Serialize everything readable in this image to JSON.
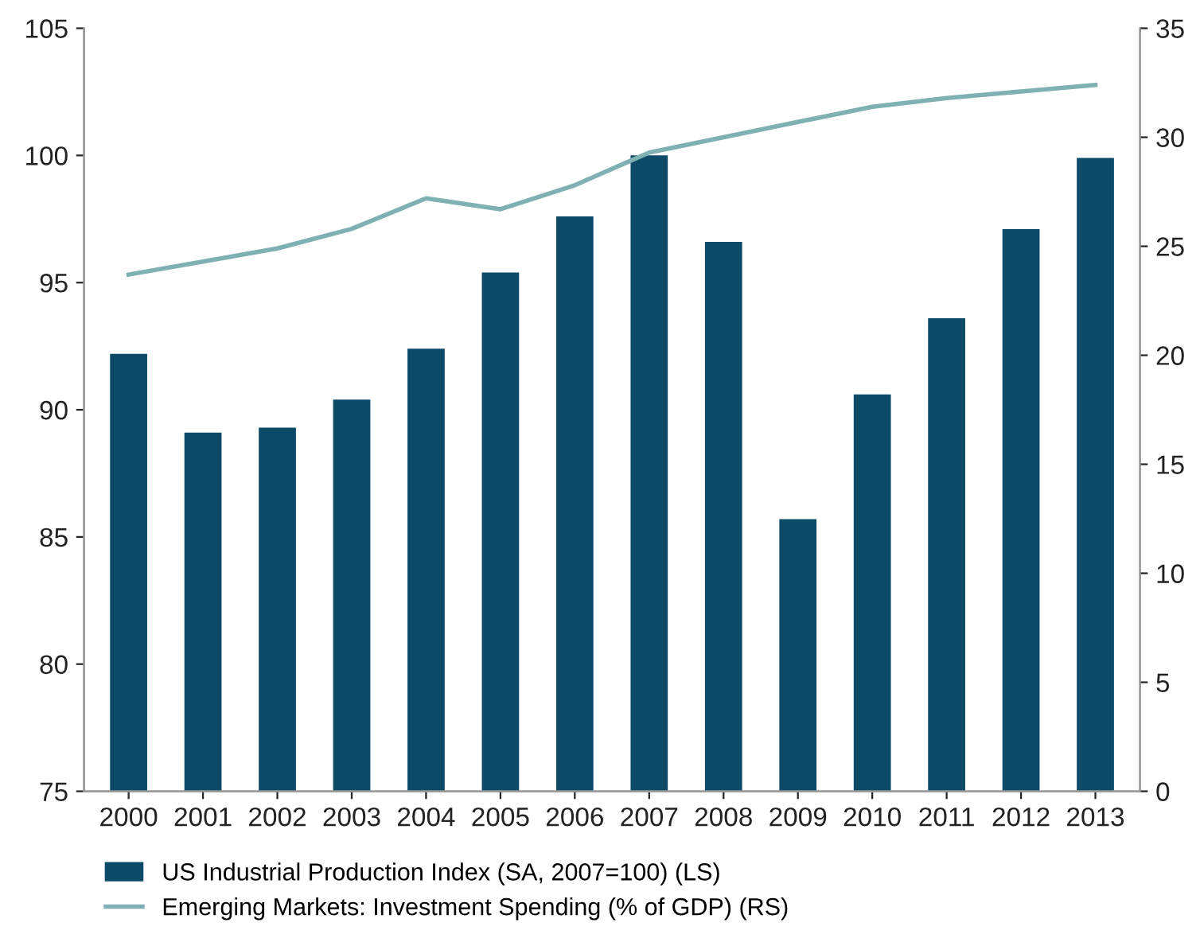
{
  "chart_data": {
    "type": "bar",
    "categories": [
      "2000",
      "2001",
      "2002",
      "2003",
      "2004",
      "2005",
      "2006",
      "2007",
      "2008",
      "2009",
      "2010",
      "2011",
      "2012",
      "2013"
    ],
    "series": [
      {
        "name": "US Industrial Production Index (SA, 2007=100) (LS)",
        "color": "#0d4a68",
        "values": [
          92.2,
          89.1,
          89.3,
          90.4,
          92.4,
          95.4,
          97.6,
          100.0,
          96.6,
          85.7,
          90.6,
          93.6,
          97.1,
          99.9
        ]
      },
      {
        "name": "Emerging Markets: Investment Spending (% of GDP) (RS)",
        "type": "line",
        "axis": "y2",
        "color": "#7fb0b4",
        "values": [
          23.7,
          24.3,
          24.9,
          25.8,
          27.2,
          26.7,
          27.8,
          29.3,
          30.0,
          30.7,
          31.4,
          31.8,
          32.1,
          32.4
        ]
      }
    ],
    "ylim": [
      75,
      105
    ],
    "yticks": [
      75,
      80,
      85,
      90,
      95,
      100,
      105
    ],
    "y2lim": [
      0,
      35
    ],
    "y2ticks": [
      0,
      5,
      10,
      15,
      20,
      25,
      30,
      35
    ],
    "grid": false,
    "legend": "bottom",
    "marker": "none",
    "line_style": "solid"
  }
}
